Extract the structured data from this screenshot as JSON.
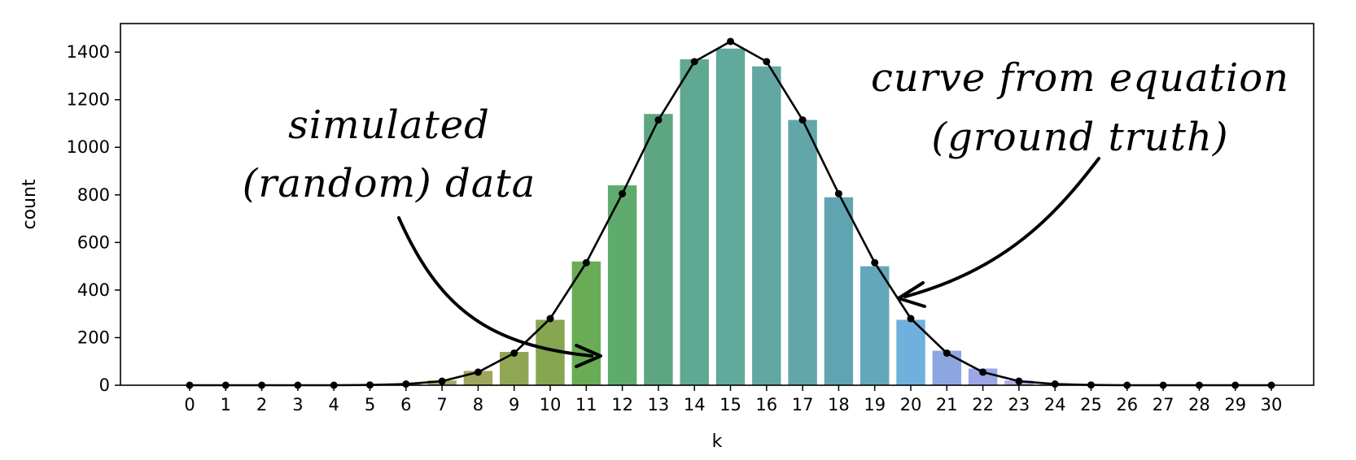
{
  "chart_data": {
    "type": "bar",
    "title": "",
    "xlabel": "k",
    "ylabel": "count",
    "categories": [
      "0",
      "1",
      "2",
      "3",
      "4",
      "5",
      "6",
      "7",
      "8",
      "9",
      "10",
      "11",
      "12",
      "13",
      "14",
      "15",
      "16",
      "17",
      "18",
      "19",
      "20",
      "21",
      "22",
      "23",
      "24",
      "25",
      "26",
      "27",
      "28",
      "29",
      "30"
    ],
    "ylim": [
      0,
      1520
    ],
    "yticks": [
      0,
      200,
      400,
      600,
      800,
      1000,
      1200,
      1400
    ],
    "grid": false,
    "series": [
      {
        "type": "bar",
        "values": [
          0,
          0,
          0,
          0,
          1,
          2,
          7,
          20,
          60,
          140,
          275,
          520,
          840,
          1140,
          1370,
          1415,
          1340,
          1115,
          790,
          500,
          275,
          145,
          70,
          20,
          6,
          1,
          0,
          0,
          0,
          0,
          0
        ],
        "colors": [
          "#c2a27e",
          "#c0a37d",
          "#bea57b",
          "#bca779",
          "#b8a877",
          "#b4aa74",
          "#ada96f",
          "#a7a866",
          "#9ea65d",
          "#91a655",
          "#86a650",
          "#6aab55",
          "#5fab6e",
          "#5ea682",
          "#5fa891",
          "#60a99b",
          "#62a7a4",
          "#62a6aa",
          "#60a4b2",
          "#64a6ba",
          "#6fb0dc",
          "#8ea6e0",
          "#9aa6e5",
          "#b4a9e8",
          "#c4a9e8",
          "#cca5e6",
          "#d4a4e6",
          "#daa2e4",
          "#e0a0e2",
          "#e59fe0",
          "#eaa0de"
        ]
      },
      {
        "type": "line",
        "color": "#000000",
        "values": [
          0,
          0,
          0,
          0,
          0,
          1,
          5,
          17,
          55,
          135,
          280,
          515,
          805,
          1115,
          1360,
          1445,
          1360,
          1115,
          805,
          515,
          280,
          135,
          55,
          17,
          5,
          1,
          0,
          0,
          0,
          0,
          0
        ]
      }
    ],
    "annotations": [
      {
        "text": "simulated",
        "target": "bar k=12"
      },
      {
        "text": "(random) data",
        "target": "bar k=12"
      },
      {
        "text": "curve from equation",
        "target": "curve k=20"
      },
      {
        "text": "(ground truth)",
        "target": "curve k=20"
      }
    ]
  }
}
